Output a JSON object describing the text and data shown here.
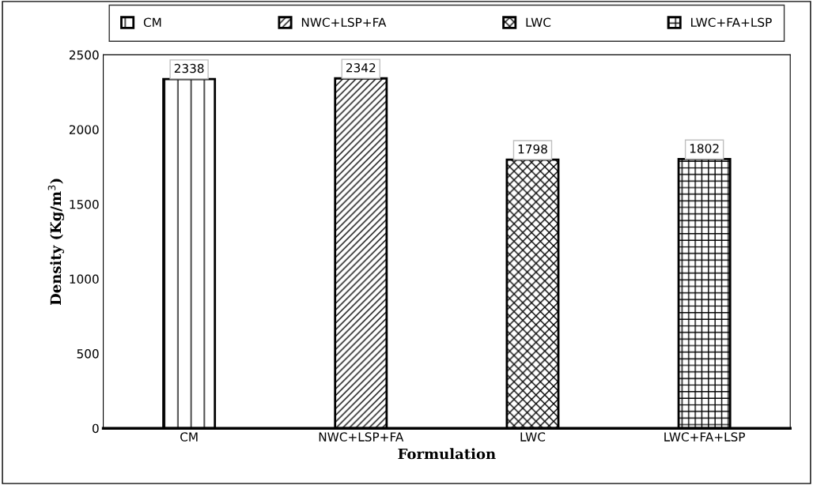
{
  "chart_data": {
    "type": "bar",
    "xlabel": "Formulation",
    "ylabel": "Density (Kg/m$^{3}$)",
    "categories": [
      "CM",
      "NWC+LSP+FA",
      "LWC",
      "LWC+FA+LSP"
    ],
    "series": [
      {
        "name": "CM",
        "color": "#000000",
        "values": [
          2338,
          null,
          null,
          null
        ]
      },
      {
        "name": "NWC+LSP+FA",
        "color": "#000000",
        "values": [
          null,
          2342,
          null,
          null
        ]
      },
      {
        "name": "LWC",
        "color": "#000000",
        "values": [
          null,
          null,
          1798,
          null
        ]
      },
      {
        "name": "LWC+FA+LSP",
        "color": "#000000",
        "values": [
          null,
          null,
          null,
          1802
        ]
      }
    ],
    "ylim": [
      0,
      2500
    ],
    "yticks": [
      0,
      500,
      1000,
      1500,
      2000,
      2500
    ],
    "data_labels": true,
    "grid": false,
    "legend": "top"
  }
}
